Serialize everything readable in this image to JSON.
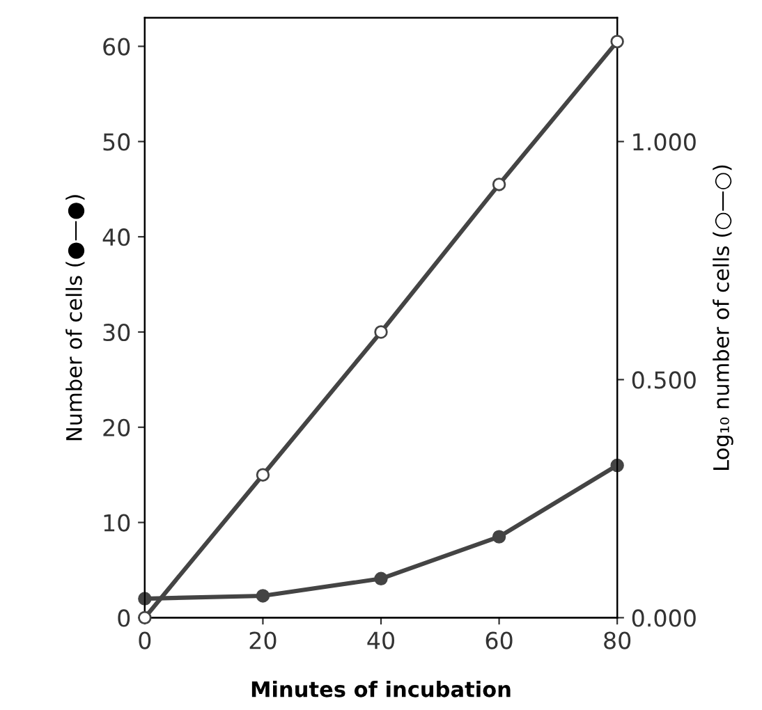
{
  "chart_data": {
    "type": "line",
    "xlabel": "Minutes of incubation",
    "ylabel": "Number of cells (●—●)",
    "y2label": "Log₁₀ number of cells (○—○)",
    "x": [
      0,
      20,
      40,
      60,
      80
    ],
    "series": [
      {
        "color": "#444444",
        "values": [
          2,
          2.3,
          4.1,
          8.5,
          16
        ]
      },
      {
        "color": "#444444",
        "axis": "y2",
        "values": [
          0,
          0.3,
          0.6,
          0.91,
          1.21
        ]
      }
    ],
    "xlim": [
      0,
      80
    ],
    "xticks": [
      0,
      20,
      40,
      60,
      80
    ],
    "ylim": [
      0,
      63
    ],
    "yticks": [
      0,
      10,
      20,
      30,
      40,
      50,
      60
    ],
    "y2lim": [
      0,
      1.26
    ],
    "y2ticks": [
      {
        "value": 0,
        "label": "0.000"
      },
      {
        "value": 0.5,
        "label": "0.500"
      },
      {
        "value": 1,
        "label": "1.000"
      }
    ],
    "marker": "circle",
    "line_style": "solid",
    "grid": false,
    "legend": false
  }
}
